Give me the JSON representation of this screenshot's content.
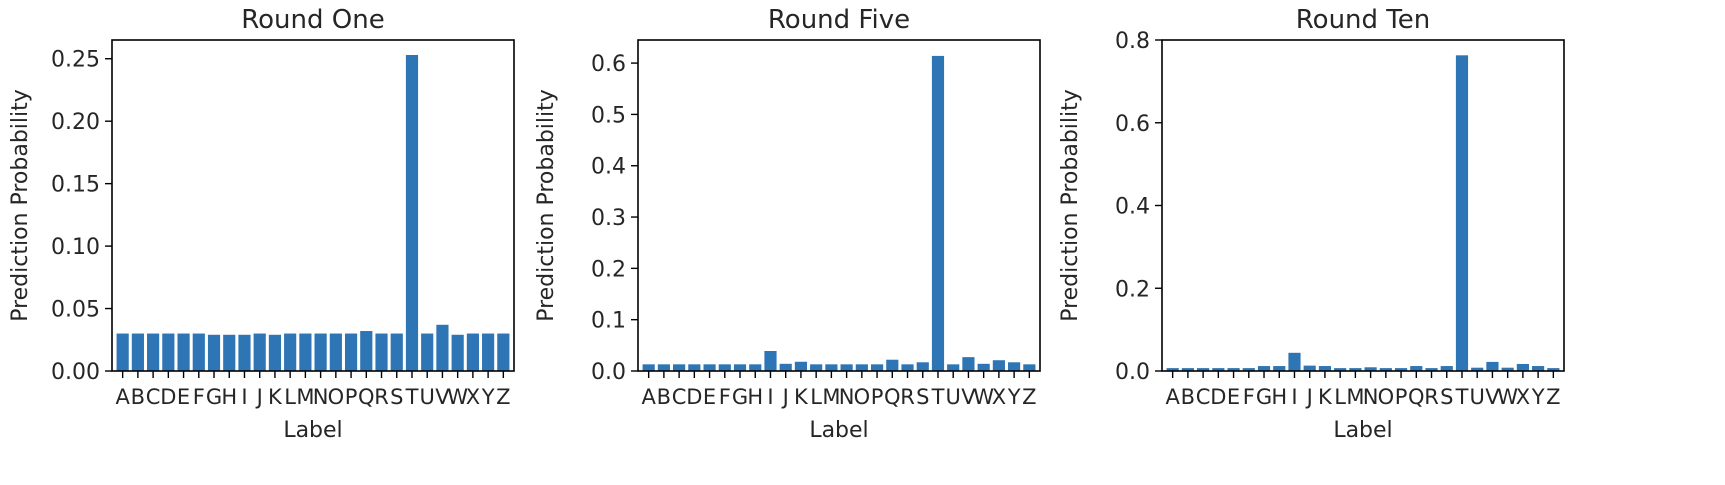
{
  "chart_data": [
    {
      "type": "bar",
      "title": "Round One",
      "xlabel": "Label",
      "ylabel": "Prediction Probability",
      "categories": [
        "A",
        "B",
        "C",
        "D",
        "E",
        "F",
        "G",
        "H",
        "I",
        "J",
        "K",
        "L",
        "M",
        "N",
        "O",
        "P",
        "Q",
        "R",
        "S",
        "T",
        "U",
        "V",
        "W",
        "X",
        "Y",
        "Z"
      ],
      "values": [
        0.03,
        0.03,
        0.03,
        0.03,
        0.03,
        0.03,
        0.029,
        0.029,
        0.029,
        0.03,
        0.029,
        0.03,
        0.03,
        0.03,
        0.03,
        0.03,
        0.032,
        0.03,
        0.03,
        0.253,
        0.03,
        0.037,
        0.029,
        0.03,
        0.03,
        0.03
      ],
      "ylim": [
        0,
        0.265
      ],
      "yticks": [
        0.0,
        0.05,
        0.1,
        0.15,
        0.2,
        0.25
      ],
      "ytick_labels": [
        "0.00",
        "0.05",
        "0.10",
        "0.15",
        "0.20",
        "0.25"
      ],
      "grid": false,
      "bar_color": "#2e75b6"
    },
    {
      "type": "bar",
      "title": "Round Five",
      "xlabel": "Label",
      "ylabel": "Prediction Probability",
      "categories": [
        "A",
        "B",
        "C",
        "D",
        "E",
        "F",
        "G",
        "H",
        "I",
        "J",
        "K",
        "L",
        "M",
        "N",
        "O",
        "P",
        "Q",
        "R",
        "S",
        "T",
        "U",
        "V",
        "W",
        "X",
        "Y",
        "Z"
      ],
      "values": [
        0.013,
        0.013,
        0.013,
        0.013,
        0.013,
        0.013,
        0.013,
        0.013,
        0.039,
        0.014,
        0.018,
        0.013,
        0.013,
        0.013,
        0.013,
        0.013,
        0.022,
        0.013,
        0.017,
        0.614,
        0.013,
        0.027,
        0.014,
        0.021,
        0.017,
        0.013
      ],
      "ylim": [
        0,
        0.645
      ],
      "yticks": [
        0.0,
        0.1,
        0.2,
        0.3,
        0.4,
        0.5,
        0.6
      ],
      "ytick_labels": [
        "0.0",
        "0.1",
        "0.2",
        "0.3",
        "0.4",
        "0.5",
        "0.6"
      ],
      "grid": false,
      "bar_color": "#2e75b6"
    },
    {
      "type": "bar",
      "title": "Round Ten",
      "xlabel": "Label",
      "ylabel": "Prediction Probability",
      "categories": [
        "A",
        "B",
        "C",
        "D",
        "E",
        "F",
        "G",
        "H",
        "I",
        "J",
        "K",
        "L",
        "M",
        "N",
        "O",
        "P",
        "Q",
        "R",
        "S",
        "T",
        "U",
        "V",
        "W",
        "X",
        "Y",
        "Z"
      ],
      "values": [
        0.007,
        0.007,
        0.007,
        0.007,
        0.007,
        0.007,
        0.012,
        0.012,
        0.044,
        0.013,
        0.012,
        0.007,
        0.007,
        0.009,
        0.007,
        0.007,
        0.012,
        0.007,
        0.012,
        0.763,
        0.008,
        0.022,
        0.008,
        0.017,
        0.012,
        0.007
      ],
      "ylim": [
        0,
        0.8
      ],
      "yticks": [
        0.0,
        0.2,
        0.4,
        0.6,
        0.8
      ],
      "ytick_labels": [
        "0.0",
        "0.2",
        "0.4",
        "0.6",
        "0.8"
      ],
      "grid": false,
      "bar_color": "#2e75b6"
    }
  ]
}
